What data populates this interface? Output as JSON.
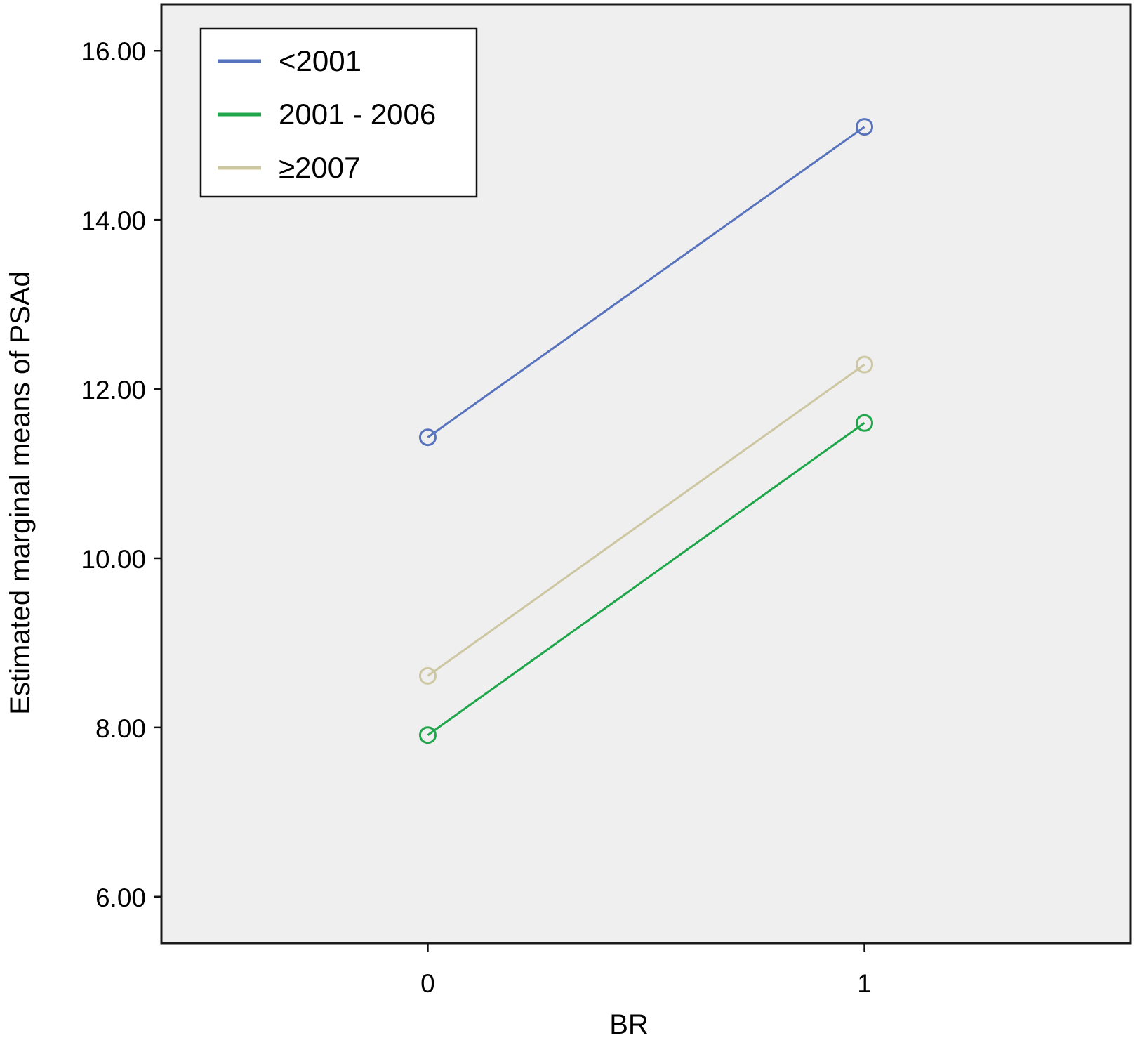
{
  "chart_data": {
    "type": "line",
    "xlabel": "BR",
    "ylabel": "Estimated marginal means of PSAd",
    "x": [
      0,
      1
    ],
    "x_tick_labels": [
      "0",
      "1"
    ],
    "xlim": [
      -0.61,
      1.61
    ],
    "ylim": [
      5.45,
      16.55
    ],
    "y_ticks": [
      6,
      8,
      10,
      12,
      14,
      16
    ],
    "y_tick_labels": [
      "6.00",
      "8.00",
      "10.00",
      "12.00",
      "14.00",
      "16.00"
    ],
    "grid": false,
    "legend_position": "top-left",
    "plot_background": "#efefef",
    "series": [
      {
        "name": "<2001",
        "color": "#5873bd",
        "values": [
          11.43,
          15.1
        ]
      },
      {
        "name": "2001 - 2006",
        "color": "#1fa64a",
        "values": [
          7.91,
          11.6
        ]
      },
      {
        "name": "≥2007",
        "color": "#cdc7a1",
        "values": [
          8.61,
          12.29
        ]
      }
    ]
  }
}
